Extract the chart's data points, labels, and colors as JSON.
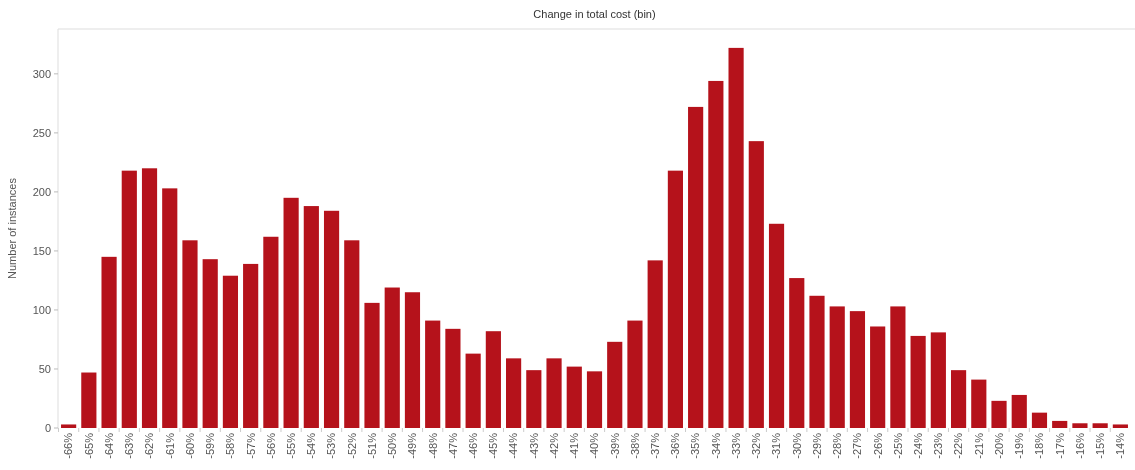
{
  "chart_data": {
    "type": "bar",
    "title": "Change in total cost (bin)",
    "ylabel": "Number of instances",
    "categories": [
      "-66%",
      "-65%",
      "-64%",
      "-63%",
      "-62%",
      "-61%",
      "-60%",
      "-59%",
      "-58%",
      "-57%",
      "-56%",
      "-55%",
      "-54%",
      "-53%",
      "-52%",
      "-51%",
      "-50%",
      "-49%",
      "-48%",
      "-47%",
      "-46%",
      "-45%",
      "-44%",
      "-43%",
      "-42%",
      "-41%",
      "-40%",
      "-39%",
      "-38%",
      "-37%",
      "-36%",
      "-35%",
      "-34%",
      "-33%",
      "-32%",
      "-31%",
      "-30%",
      "-29%",
      "-28%",
      "-27%",
      "-26%",
      "-25%",
      "-24%",
      "-23%",
      "-22%",
      "-21%",
      "-20%",
      "-19%",
      "-18%",
      "-17%",
      "-16%",
      "-15%",
      "-14%"
    ],
    "series": [
      {
        "color": "#b5121b",
        "values": [
          3,
          47,
          145,
          218,
          220,
          203,
          159,
          143,
          129,
          139,
          162,
          195,
          188,
          184,
          159,
          106,
          119,
          115,
          91,
          84,
          63,
          82,
          59,
          49,
          59,
          52,
          48,
          73,
          91,
          142,
          218,
          272,
          294,
          322,
          243,
          173,
          127,
          112,
          103,
          99,
          86,
          103,
          78,
          81,
          49,
          41,
          23,
          28,
          13,
          6,
          4,
          4,
          3
        ]
      }
    ],
    "ylim": [
      0,
      338
    ],
    "yticks": [
      0,
      50,
      100,
      150,
      200,
      250,
      300
    ],
    "grid": false
  }
}
